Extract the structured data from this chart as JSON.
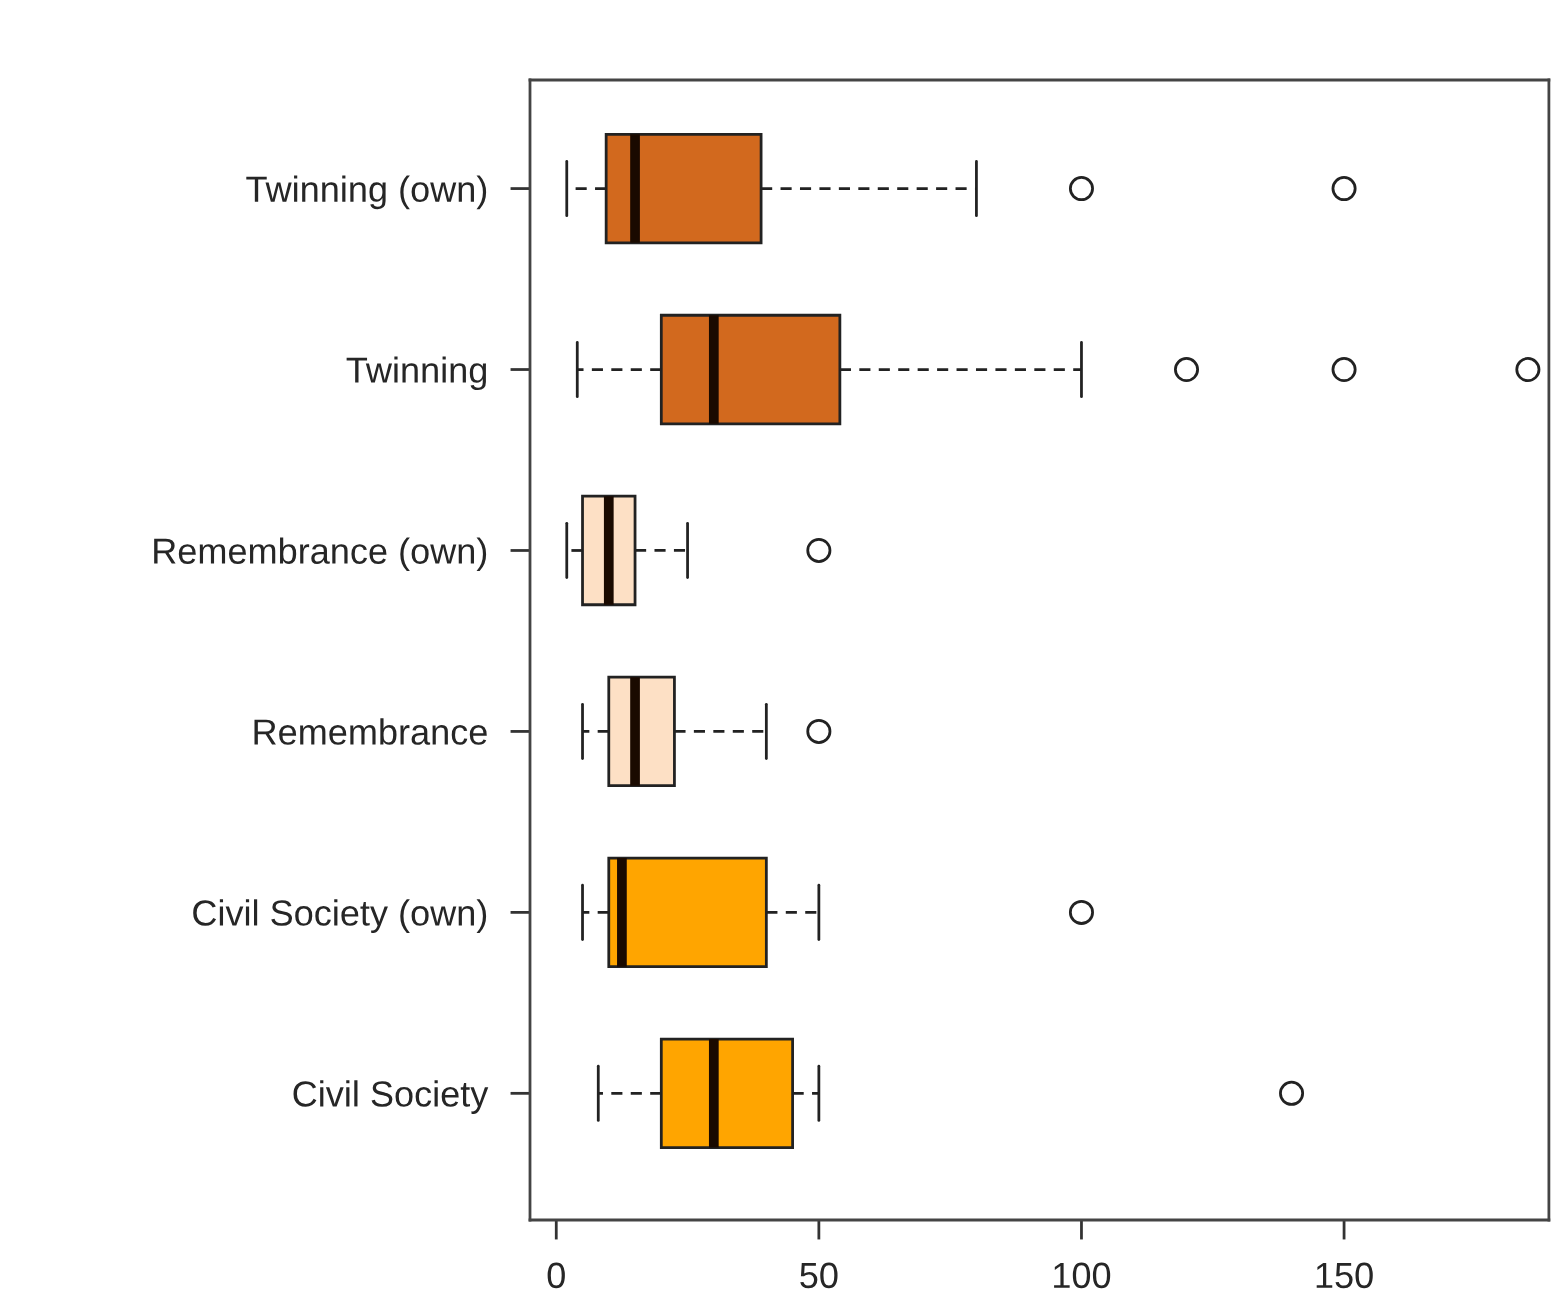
{
  "chart_data": {
    "type": "box",
    "orientation": "horizontal",
    "categories": [
      "Twinning (own)",
      "Twinning",
      "Remembrance (own)",
      "Remembrance",
      "Civil Society (own)",
      "Civil Society"
    ],
    "boxes": [
      {
        "low": 2,
        "q1": 9.5,
        "median": 15,
        "q3": 39,
        "high": 80,
        "outliers": [
          100,
          150
        ]
      },
      {
        "low": 4,
        "q1": 20,
        "median": 30,
        "q3": 54,
        "high": 100,
        "outliers": [
          120,
          150,
          185
        ]
      },
      {
        "low": 2,
        "q1": 5,
        "median": 10,
        "q3": 15,
        "high": 25,
        "outliers": [
          50
        ]
      },
      {
        "low": 5,
        "q1": 10,
        "median": 15,
        "q3": 22.5,
        "high": 40,
        "outliers": [
          50
        ]
      },
      {
        "low": 5,
        "q1": 10,
        "median": 12.5,
        "q3": 40,
        "high": 50,
        "outliers": [
          100
        ]
      },
      {
        "low": 8,
        "q1": 20,
        "median": 30,
        "q3": 45,
        "high": 50,
        "outliers": [
          140
        ]
      }
    ],
    "colors": [
      "#d2691e",
      "#d2691e",
      "#fde0c5",
      "#fde0c5",
      "#ffa500",
      "#ffa500"
    ],
    "xlim": [
      -5,
      189
    ],
    "xticks": [
      0,
      50,
      100,
      150
    ],
    "line_style": "dashed",
    "marker": "circle",
    "grid": false,
    "legend": false
  }
}
